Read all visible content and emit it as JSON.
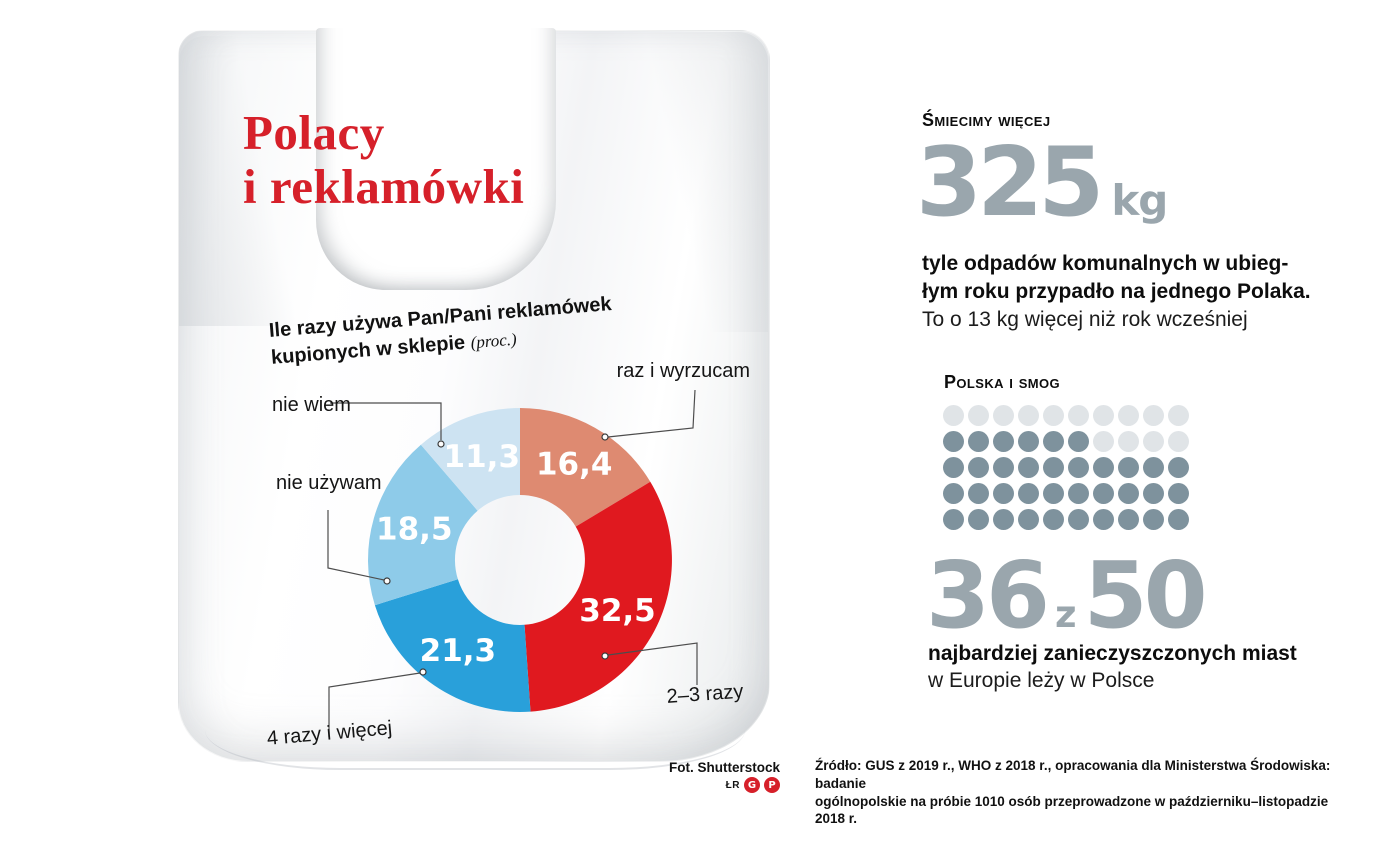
{
  "title": {
    "line1": "Polacy",
    "line2": "i reklamówki",
    "color": "#d6202a"
  },
  "chart": {
    "question_line1": "Ile razy używa Pan/Pani reklamówek",
    "question_line2": "kupionych w sklepie",
    "question_note": "(proc.)"
  },
  "chart_data": [
    {
      "type": "pie",
      "donut": true,
      "title": "Ile razy używa Pan/Pani reklamówek kupionych w sklepie (proc.)",
      "unit": "proc.",
      "start_angle_deg": 0,
      "clockwise": true,
      "categories": [
        "raz i wyrzucam",
        "2–3 razy",
        "4 razy i więcej",
        "nie używam",
        "nie wiem"
      ],
      "values": [
        16.4,
        32.5,
        21.3,
        18.5,
        11.3
      ],
      "value_labels": [
        "16,4",
        "32,5",
        "21,3",
        "18,5",
        "11,3"
      ],
      "colors": [
        "#de8a71",
        "#e0191f",
        "#29a0da",
        "#8ecbe9",
        "#cde3f2"
      ]
    },
    {
      "type": "pictogram",
      "title": "Polska i smog",
      "total": 50,
      "highlighted": 36,
      "columns": 10,
      "rows": [
        "LLLLLLLLLL",
        "DDDDDDLLLL",
        "DDDDDDDDDD",
        "DDDDDDDDDD",
        "DDDDDDDDDD"
      ],
      "dark_color": "#7e929d",
      "light_color": "#e0e4e7"
    }
  ],
  "stats": {
    "waste": {
      "heading": "Śmiecimy więcej",
      "value": "325",
      "unit": "kg",
      "value_color": "#9aa6ad",
      "bold_lines": "tyle odpadów komunalnych w ubieg-\nłym roku przypadło na jednego Polaka.",
      "normal_line": "To o 13 kg więcej niż rok wcześniej"
    },
    "smog": {
      "heading": "Polska i smog",
      "big_value": "36",
      "big_connector": "z",
      "big_total": "50",
      "caption_bold": "najbardziej zanieczyszczonych miast",
      "caption_normal": "w Europie leży w Polsce"
    }
  },
  "footer": {
    "photo_credit": "Fot. Shutterstock",
    "author_initials": "ŁR",
    "logo_letters": [
      "G",
      "P"
    ],
    "source": "Źródło: GUS z 2019 r., WHO z 2018 r., opracowania dla Ministerstwa Środowiska: badanie\nogólnopolskie na próbie 1010 osób przeprowadzone w październiku–listopadzie 2018 r."
  }
}
